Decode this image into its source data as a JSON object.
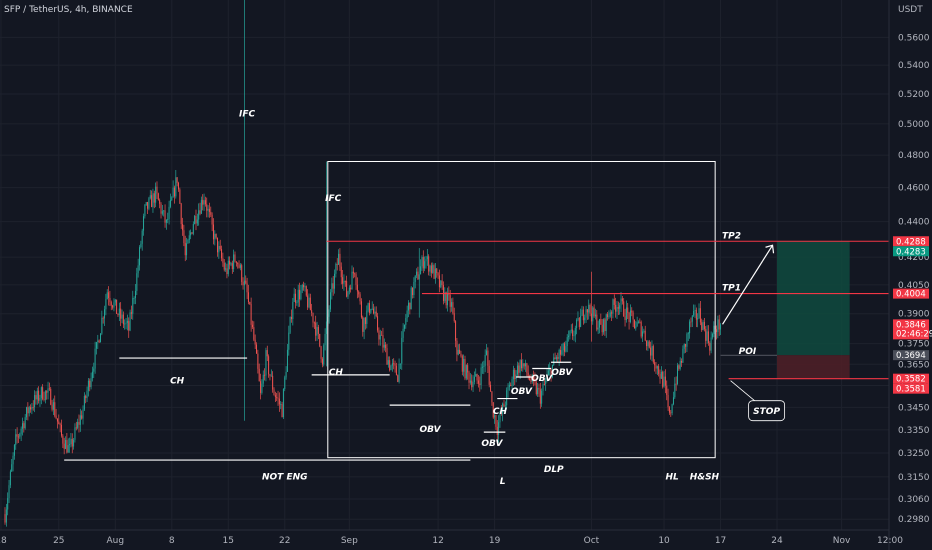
{
  "header": {
    "title": "SFP / TetherUS, 4h, BINANCE",
    "currency": "USDT"
  },
  "colors": {
    "background": "#131722",
    "grid": "#1e222d",
    "up": "#26a69a",
    "down": "#ef5350",
    "annotation": "#ffffff",
    "target_line": "#f23645",
    "profit_zone": "#0f4a3e",
    "loss_zone": "#4d1f27"
  },
  "chart_data": {
    "type": "candlestick",
    "symbol": "SFP/USDT",
    "interval": "4h",
    "exchange": "BINANCE",
    "y_axis": {
      "scale": "log",
      "ylim": [
        0.29,
        0.585
      ],
      "ticks": [
        "0.5600",
        "0.5400",
        "0.5200",
        "0.5000",
        "0.4800",
        "0.4600",
        "0.4400",
        "0.4200",
        "0.4050",
        "0.3900",
        "0.3750",
        "0.3650",
        "0.3550",
        "0.3450",
        "0.3350",
        "0.3250",
        "0.3150",
        "0.3060",
        "0.2980"
      ]
    },
    "x_axis": {
      "ticks": [
        {
          "label": "18",
          "bar": -3
        },
        {
          "label": "25",
          "bar": 40
        },
        {
          "label": "Aug",
          "bar": 82
        },
        {
          "label": "8",
          "bar": 124
        },
        {
          "label": "15",
          "bar": 166
        },
        {
          "label": "22",
          "bar": 208
        },
        {
          "label": "Sep",
          "bar": 256
        },
        {
          "label": "12",
          "bar": 322
        },
        {
          "label": "19",
          "bar": 364
        },
        {
          "label": "Oct",
          "bar": 436
        },
        {
          "label": "10",
          "bar": 490
        },
        {
          "label": "17",
          "bar": 532
        },
        {
          "label": "24",
          "bar": 574
        },
        {
          "label": "Nov",
          "bar": 622
        },
        {
          "label": "12:00",
          "bar": 658
        }
      ]
    },
    "price_path": [
      [
        0,
        0.3
      ],
      [
        8,
        0.33
      ],
      [
        18,
        0.345
      ],
      [
        28,
        0.352
      ],
      [
        34,
        0.35
      ],
      [
        42,
        0.332
      ],
      [
        48,
        0.326
      ],
      [
        58,
        0.344
      ],
      [
        68,
        0.372
      ],
      [
        76,
        0.402
      ],
      [
        84,
        0.39
      ],
      [
        92,
        0.382
      ],
      [
        98,
        0.41
      ],
      [
        104,
        0.446
      ],
      [
        112,
        0.456
      ],
      [
        120,
        0.438
      ],
      [
        128,
        0.466
      ],
      [
        134,
        0.42
      ],
      [
        140,
        0.44
      ],
      [
        148,
        0.455
      ],
      [
        156,
        0.43
      ],
      [
        164,
        0.412
      ],
      [
        172,
        0.42
      ],
      [
        180,
        0.4
      ],
      [
        186,
        0.372
      ],
      [
        190,
        0.35
      ],
      [
        194,
        0.368
      ],
      [
        200,
        0.352
      ],
      [
        206,
        0.344
      ],
      [
        214,
        0.398
      ],
      [
        222,
        0.402
      ],
      [
        230,
        0.386
      ],
      [
        236,
        0.368
      ],
      [
        242,
        0.398
      ],
      [
        248,
        0.42
      ],
      [
        254,
        0.4
      ],
      [
        260,
        0.414
      ],
      [
        266,
        0.385
      ],
      [
        272,
        0.395
      ],
      [
        278,
        0.38
      ],
      [
        286,
        0.365
      ],
      [
        292,
        0.36
      ],
      [
        298,
        0.388
      ],
      [
        304,
        0.405
      ],
      [
        312,
        0.42
      ],
      [
        320,
        0.41
      ],
      [
        326,
        0.4
      ],
      [
        332,
        0.394
      ],
      [
        336,
        0.372
      ],
      [
        342,
        0.362
      ],
      [
        346,
        0.358
      ],
      [
        352,
        0.357
      ],
      [
        358,
        0.37
      ],
      [
        362,
        0.346
      ],
      [
        366,
        0.336
      ],
      [
        370,
        0.344
      ],
      [
        374,
        0.352
      ],
      [
        378,
        0.36
      ],
      [
        384,
        0.366
      ],
      [
        392,
        0.356
      ],
      [
        398,
        0.35
      ],
      [
        404,
        0.36
      ],
      [
        410,
        0.368
      ],
      [
        416,
        0.372
      ],
      [
        420,
        0.378
      ],
      [
        426,
        0.384
      ],
      [
        432,
        0.394
      ],
      [
        438,
        0.388
      ],
      [
        444,
        0.382
      ],
      [
        450,
        0.392
      ],
      [
        456,
        0.396
      ],
      [
        462,
        0.39
      ],
      [
        468,
        0.385
      ],
      [
        474,
        0.382
      ],
      [
        480,
        0.372
      ],
      [
        486,
        0.362
      ],
      [
        490,
        0.356
      ],
      [
        494,
        0.34
      ],
      [
        498,
        0.356
      ],
      [
        504,
        0.37
      ],
      [
        510,
        0.386
      ],
      [
        516,
        0.39
      ],
      [
        520,
        0.382
      ],
      [
        524,
        0.375
      ],
      [
        528,
        0.383
      ],
      [
        532,
        0.3846
      ]
    ],
    "spikes": [
      {
        "bar": 178,
        "high": 0.59,
        "low": 0.339
      },
      {
        "bar": 239,
        "high": 0.476,
        "low": 0.364
      },
      {
        "bar": 308,
        "high": 0.425,
        "low": 0.388
      },
      {
        "bar": 436,
        "high": 0.412,
        "low": 0.376
      }
    ],
    "last_price": 0.3846,
    "countdown": "02:46:29",
    "price_tags": [
      {
        "label": "0.4288",
        "value": 0.4288,
        "style": "red"
      },
      {
        "label": "0.4283",
        "value": 0.4283,
        "style": "green"
      },
      {
        "label": "0.4004",
        "value": 0.4004,
        "style": "red"
      },
      {
        "label": "0.3846",
        "value": 0.3846,
        "style": "last"
      },
      {
        "label": "0.3694",
        "value": 0.3694,
        "style": "grey"
      },
      {
        "label": "0.3582",
        "value": 0.3582,
        "style": "red"
      },
      {
        "label": "0.3581",
        "value": 0.3581,
        "style": "red"
      }
    ],
    "levels": [
      {
        "label": "TP2",
        "value": 0.4288,
        "from_bar": 239
      },
      {
        "label": "TP1",
        "value": 0.4004,
        "from_bar": 310
      },
      {
        "label": "STOP",
        "value": 0.3582,
        "from_bar": 538
      }
    ],
    "annotations": [
      {
        "label": "IFC",
        "bar": 180,
        "value": 0.505
      },
      {
        "label": "IFC",
        "bar": 244,
        "value": 0.452
      },
      {
        "label": "CH",
        "bar": 128,
        "value": 0.356
      },
      {
        "label": "CH",
        "bar": 246,
        "value": 0.36
      },
      {
        "label": "OBV",
        "bar": 316,
        "value": 0.334
      },
      {
        "label": "OBV",
        "bar": 362,
        "value": 0.328
      },
      {
        "label": "CH",
        "bar": 368,
        "value": 0.342
      },
      {
        "label": "OBV",
        "bar": 384,
        "value": 0.351
      },
      {
        "label": "OBV",
        "bar": 399,
        "value": 0.357
      },
      {
        "label": "OBV",
        "bar": 414,
        "value": 0.36
      },
      {
        "label": "DLP",
        "bar": 408,
        "value": 0.317
      },
      {
        "label": "NOT ENG",
        "bar": 208,
        "value": 0.314
      },
      {
        "label": "L",
        "bar": 370,
        "value": 0.312
      },
      {
        "label": "HL",
        "bar": 496,
        "value": 0.314
      },
      {
        "label": "H&SH",
        "bar": 520,
        "value": 0.314
      },
      {
        "label": "POI",
        "bar": 552,
        "value": 0.37
      }
    ],
    "structure_lines": [
      {
        "from_bar": 85,
        "to_bar": 180,
        "value": 0.368
      },
      {
        "from_bar": 228,
        "to_bar": 286,
        "value": 0.36
      },
      {
        "from_bar": 286,
        "to_bar": 346,
        "value": 0.346
      },
      {
        "from_bar": 356,
        "to_bar": 372,
        "value": 0.334
      },
      {
        "from_bar": 366,
        "to_bar": 381,
        "value": 0.349
      },
      {
        "from_bar": 380,
        "to_bar": 392,
        "value": 0.359
      },
      {
        "from_bar": 392,
        "to_bar": 406,
        "value": 0.363
      },
      {
        "from_bar": 406,
        "to_bar": 421,
        "value": 0.366
      },
      {
        "from_bar": 44,
        "to_bar": 346,
        "value": 0.322
      }
    ],
    "zone_box": {
      "from_bar": 240,
      "to_bar": 528,
      "top": 0.476,
      "bottom": 0.323
    },
    "position": {
      "entry": 0.3694,
      "target": 0.4288,
      "stop": 0.3582,
      "from_bar": 574,
      "to_bar": 628
    }
  }
}
